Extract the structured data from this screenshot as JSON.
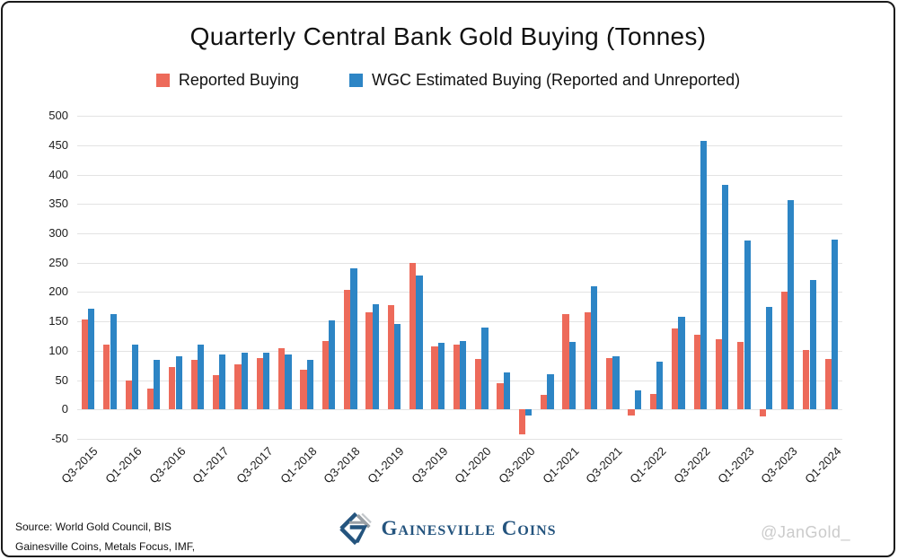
{
  "title": "Quarterly Central Bank Gold Buying (Tonnes)",
  "legend": [
    {
      "label": "Reported Buying",
      "color": "#ed6a5a"
    },
    {
      "label": "WGC Estimated Buying (Reported and Unreported)",
      "color": "#2d85c5"
    }
  ],
  "chart_data": {
    "type": "bar",
    "title": "Quarterly Central Bank Gold Buying (Tonnes)",
    "xlabel": "",
    "ylabel": "",
    "ylim": [
      -50,
      500
    ],
    "yticks": [
      500,
      450,
      400,
      350,
      300,
      250,
      200,
      150,
      100,
      50,
      0,
      -50
    ],
    "grid": "horizontal",
    "legend_position": "top",
    "x_tick_labels": [
      "Q3-2015",
      "Q1-2016",
      "Q3-2016",
      "Q1-2017",
      "Q3-2017",
      "Q1-2018",
      "Q3-2018",
      "Q1-2019",
      "Q3-2019",
      "Q1-2020",
      "Q3-2020",
      "Q1-2021",
      "Q3-2021",
      "Q1-2022",
      "Q3-2022",
      "Q1-2023",
      "Q3-2023",
      "Q1-2024"
    ],
    "categories": [
      "Q3-2015",
      "Q4-2015",
      "Q1-2016",
      "Q2-2016",
      "Q3-2016",
      "Q4-2016",
      "Q1-2017",
      "Q2-2017",
      "Q3-2017",
      "Q4-2017",
      "Q1-2018",
      "Q2-2018",
      "Q3-2018",
      "Q4-2018",
      "Q1-2019",
      "Q2-2019",
      "Q3-2019",
      "Q4-2019",
      "Q1-2020",
      "Q2-2020",
      "Q3-2020",
      "Q4-2020",
      "Q1-2021",
      "Q2-2021",
      "Q3-2021",
      "Q4-2021",
      "Q1-2022",
      "Q2-2022",
      "Q3-2022",
      "Q4-2022",
      "Q1-2023",
      "Q2-2023",
      "Q3-2023",
      "Q4-2023",
      "Q1-2024"
    ],
    "series": [
      {
        "name": "Reported Buying",
        "color": "#ed6a5a",
        "values": [
          154,
          110,
          50,
          36,
          72,
          84,
          58,
          77,
          88,
          105,
          68,
          117,
          203,
          166,
          177,
          249,
          107,
          110,
          86,
          45,
          -42,
          25,
          163,
          165,
          87,
          -11,
          26,
          138,
          128,
          120,
          115,
          -12,
          200,
          102,
          86
        ]
      },
      {
        "name": "WGC Estimated Buying (Reported and Unreported)",
        "color": "#2d85c5",
        "values": [
          172,
          162,
          110,
          85,
          90,
          111,
          93,
          97,
          97,
          94,
          85,
          152,
          241,
          179,
          146,
          228,
          113,
          117,
          140,
          63,
          -10,
          60,
          115,
          210,
          90,
          33,
          82,
          158,
          458,
          382,
          287,
          174,
          357,
          220,
          290
        ]
      }
    ]
  },
  "footer": {
    "source_line1": "Source: World Gold Council, BIS",
    "source_line2": "Gainesville Coins, Metals Focus, IMF,",
    "brand": "Gainesville Coins",
    "watermark": "@JanGold_"
  },
  "colors": {
    "reported": "#ed6a5a",
    "wgc": "#2d85c5",
    "brand_navy": "#24547e",
    "brand_gray": "#9aa0a6",
    "gridline": "#e3e3e3",
    "watermark_gray": "#cbcbcb"
  }
}
